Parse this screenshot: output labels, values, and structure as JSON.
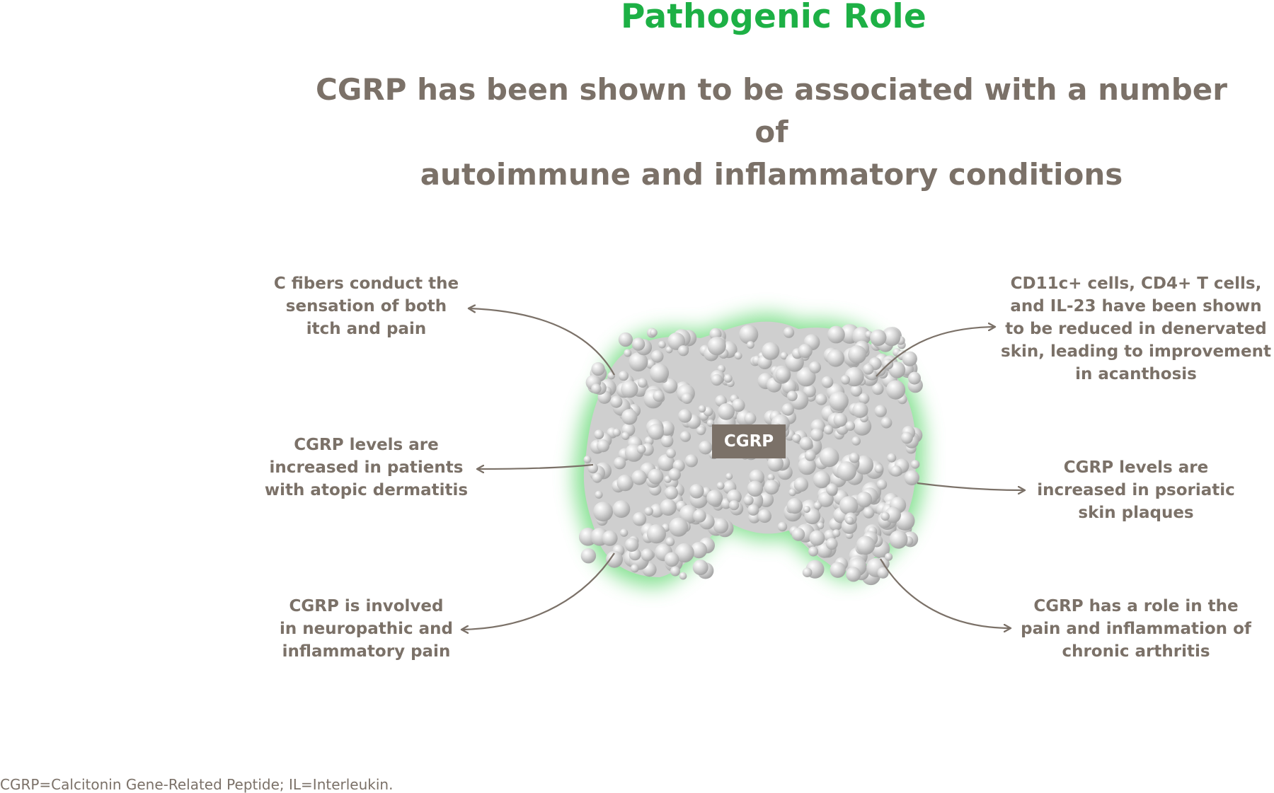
{
  "title": "Pathogenic Role",
  "subtitle_line1": "CGRP has been shown to be associated with a number of",
  "subtitle_line2": "autoimmune and inflammatory conditions",
  "center_label": "CGRP",
  "callouts": {
    "left_top": [
      "C fibers conduct the",
      "sensation of both",
      "itch and pain"
    ],
    "left_middle": [
      "CGRP levels are",
      "increased in patients",
      "with atopic dermatitis"
    ],
    "left_bottom": [
      "CGRP is involved",
      "in neuropathic and",
      "inflammatory pain"
    ],
    "right_top": [
      "CD11c+ cells, CD4+ T cells,",
      "and IL-23 have been shown",
      "to be reduced in denervated",
      "skin, leading to improvement",
      "in acanthosis"
    ],
    "right_middle": [
      "CGRP levels are",
      "increased in psoriatic",
      "skin plaques"
    ],
    "right_bottom": [
      "CGRP has a role in the",
      "pain and inflammation of",
      "chronic arthritis"
    ]
  },
  "footnote": "CGRP=Calcitonin Gene-Related Peptide; IL=Interleukin.",
  "colors": {
    "title_green": "#1db045",
    "text_gray": "#7b7168",
    "glow_green": "#5fd76e",
    "protein_gray": "#c9c9c9"
  }
}
